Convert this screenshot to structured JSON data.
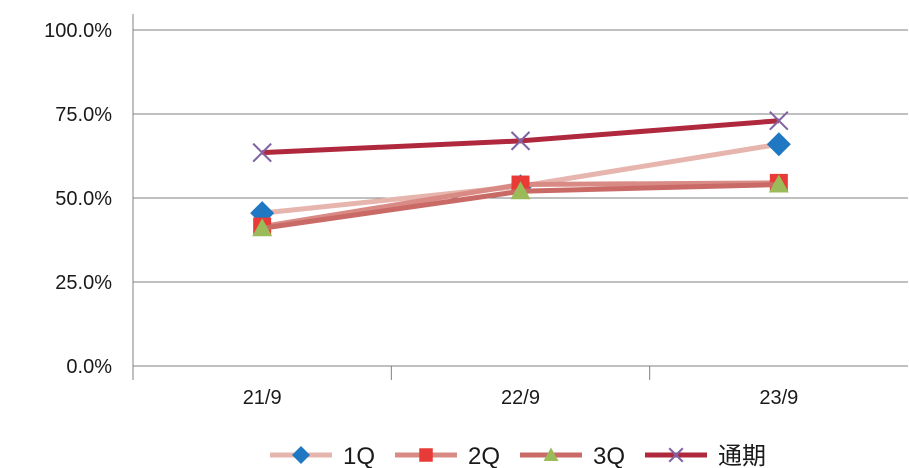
{
  "chart_data": {
    "type": "line",
    "categories": [
      "21/9",
      "22/9",
      "23/9"
    ],
    "ylim": [
      0,
      100
    ],
    "yticks": [
      "0.0%",
      "25.0%",
      "50.0%",
      "75.0%",
      "100.0%"
    ],
    "grid": true,
    "legend_position": "bottom",
    "series": [
      {
        "name": "1Q",
        "values": [
          45.5,
          53.5,
          66.0
        ],
        "line_color": "#e6b5ae",
        "marker": "diamond",
        "marker_color": "#1f78c1"
      },
      {
        "name": "2Q",
        "values": [
          41.5,
          54.0,
          54.5
        ],
        "line_color": "#d98a84",
        "marker": "square",
        "marker_color": "#e83a36"
      },
      {
        "name": "3Q",
        "values": [
          41.0,
          52.0,
          54.0
        ],
        "line_color": "#c96a66",
        "marker": "triangle",
        "marker_color": "#9bbb59"
      },
      {
        "name": "通期",
        "values": [
          63.5,
          67.0,
          73.0
        ],
        "line_color": "#b0283e",
        "marker": "x",
        "marker_color": "#8064a2"
      }
    ]
  }
}
